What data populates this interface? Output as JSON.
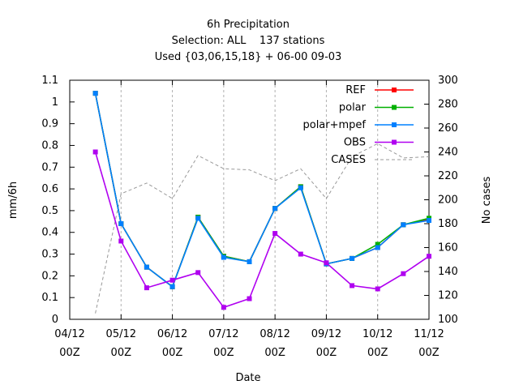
{
  "chart_data": {
    "type": "line",
    "title_lines": [
      "6h Precipitation",
      "Selection: ALL    137 stations",
      "Used {03,06,15,18} + 06-00 09-03"
    ],
    "xlabel": "Date",
    "ylabel": "mm/6h",
    "y2label": "No cases",
    "x_tick_labels": [
      {
        "line1": "04/12",
        "line2": "00Z",
        "x": "04/12 00Z"
      },
      {
        "line1": "05/12",
        "line2": "00Z",
        "x": "05/12 00Z"
      },
      {
        "line1": "06/12",
        "line2": "00Z",
        "x": "06/12 00Z"
      },
      {
        "line1": "07/12",
        "line2": "00Z",
        "x": "07/12 00Z"
      },
      {
        "line1": "08/12",
        "line2": "00Z",
        "x": "08/12 00Z"
      },
      {
        "line1": "09/12",
        "line2": "00Z",
        "x": "09/12 00Z"
      },
      {
        "line1": "10/12",
        "line2": "00Z",
        "x": "10/12 00Z"
      },
      {
        "line1": "11/12",
        "line2": "00Z",
        "x": "11/12 00Z"
      }
    ],
    "x": [
      "04/12 12Z",
      "05/12 00Z",
      "05/12 12Z",
      "06/12 00Z",
      "06/12 12Z",
      "07/12 00Z",
      "07/12 12Z",
      "08/12 00Z",
      "08/12 12Z",
      "09/12 00Z",
      "09/12 12Z",
      "10/12 00Z",
      "10/12 12Z",
      "11/12 00Z"
    ],
    "xlim": [
      "04/12 00Z",
      "11/12 00Z"
    ],
    "ylim": [
      0,
      1.1
    ],
    "yticks": [
      "0",
      "0.1",
      "0.2",
      "0.3",
      "0.4",
      "0.5",
      "0.6",
      "0.7",
      "0.8",
      "0.9",
      "1",
      "1.1"
    ],
    "y2lim": [
      100,
      300
    ],
    "y2ticks": [
      "100",
      "120",
      "140",
      "160",
      "180",
      "200",
      "220",
      "240",
      "260",
      "280",
      "300"
    ],
    "grid": true,
    "legend_position": "top-right",
    "series": [
      {
        "name": "REF",
        "color": "#ff0000",
        "axis": "left",
        "marker": "square",
        "values": [
          1.04,
          0.44,
          0.24,
          0.15,
          0.47,
          0.29,
          0.265,
          0.51,
          0.61,
          0.255,
          0.28,
          0.33,
          0.435,
          0.46
        ]
      },
      {
        "name": "polar",
        "color": "#00b000",
        "axis": "left",
        "marker": "square",
        "values": [
          1.04,
          0.44,
          0.24,
          0.15,
          0.47,
          0.29,
          0.265,
          0.51,
          0.61,
          0.255,
          0.28,
          0.345,
          0.435,
          0.465
        ]
      },
      {
        "name": "polar+mpef",
        "color": "#0080ff",
        "axis": "left",
        "marker": "square",
        "values": [
          1.04,
          0.44,
          0.24,
          0.15,
          0.465,
          0.285,
          0.265,
          0.51,
          0.605,
          0.255,
          0.28,
          0.33,
          0.435,
          0.455
        ]
      },
      {
        "name": "OBS",
        "color": "#b000f0",
        "axis": "left",
        "marker": "square",
        "values": [
          0.77,
          0.36,
          0.145,
          0.18,
          0.215,
          0.055,
          0.095,
          0.395,
          0.3,
          0.26,
          0.155,
          0.14,
          0.21,
          0.29
        ]
      },
      {
        "name": "CASES",
        "color": "#999999",
        "axis": "right",
        "dashed": true,
        "marker": "none",
        "values": [
          105,
          205,
          214,
          201,
          237,
          226,
          225,
          216,
          226,
          201,
          236,
          247,
          235,
          236
        ]
      }
    ]
  }
}
